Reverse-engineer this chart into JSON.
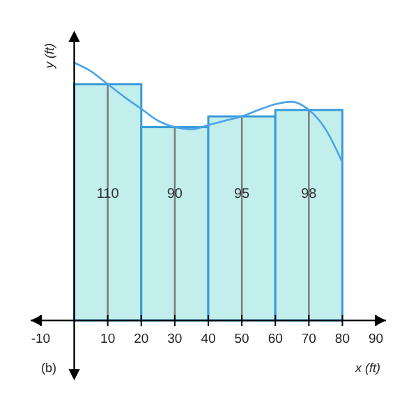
{
  "chart_data": {
    "type": "histogram",
    "xlabel": "x (ft)",
    "ylabel": "y (ft)",
    "annotations": [
      "(b)"
    ],
    "xlim": [
      -13,
      93
    ],
    "xticks": [
      -10,
      10,
      20,
      30,
      40,
      50,
      60,
      70,
      80,
      90
    ],
    "series": [
      {
        "color": "#c2eeec",
        "bins": [
          0,
          20,
          40,
          60,
          80
        ],
        "values": [
          110,
          90,
          95,
          98
        ],
        "value_labels": [
          "110",
          "90",
          "95",
          "98"
        ]
      },
      {
        "type": "bar",
        "color": "#777777",
        "x": [
          10,
          30,
          50,
          70
        ],
        "values": [
          110,
          90,
          95,
          98
        ]
      },
      {
        "type": "line",
        "color": "#4aa3e8",
        "x": [
          0,
          5,
          10,
          15,
          20,
          25,
          30,
          35,
          40,
          45,
          50,
          55,
          60,
          65,
          70,
          75,
          80
        ],
        "values": [
          120,
          116,
          110,
          104,
          98.5,
          93,
          90,
          89,
          91,
          93,
          95,
          98,
          100.7,
          101.8,
          98,
          89,
          73.6
        ]
      }
    ]
  }
}
